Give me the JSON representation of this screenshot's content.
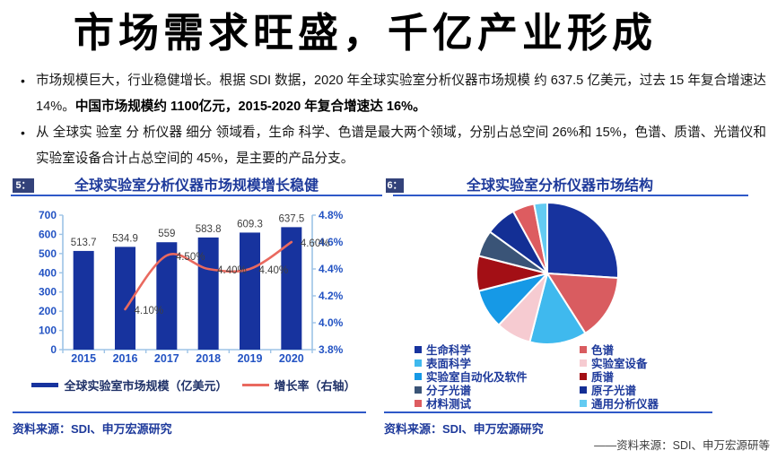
{
  "slide": {
    "title": "市场需求旺盛，千亿产业形成",
    "bullets": [
      {
        "segments": [
          {
            "text": "市场规模巨大，行业稳健增长。根据 SDI 数据，2020 年全球实验室分析仪器市场规模 约 637.5 亿美元，过去 15 年复合增速达 14%。",
            "bold": false
          },
          {
            "text": "中国市场规模约 1100亿元，2015-2020 年复合增速达 16%。",
            "bold": true
          }
        ]
      },
      {
        "segments": [
          {
            "text": "从 全球实 验室 分 析仪器 细分 领域看，生命 科学、色谱是最大两个领域，分别占总空间 26%和 15%，色谱、质谱、光谱仪和实验室设备合计占总空间的 45%，是主要的产品分支。",
            "bold": false
          }
        ]
      }
    ],
    "footnote": "——资料来源：SDI、申万宏源研等"
  },
  "left_panel": {
    "fig_num": "5：",
    "title": "全球实验室分析仪器市场规模增长稳健",
    "source": "资料来源：SDI、申万宏源研究"
  },
  "right_panel": {
    "fig_num": "6：",
    "title": "全球实验室分析仪器市场结构",
    "source": "资料来源：SDI、申万宏源研究"
  },
  "chart_data": [
    {
      "type": "bar",
      "title": "全球实验室分析仪器市场规模增长稳健",
      "categories": [
        "2015",
        "2016",
        "2017",
        "2018",
        "2019",
        "2020"
      ],
      "series": [
        {
          "name": "全球实验室市场规模（亿美元）",
          "type": "bar",
          "axis": "left",
          "color": "#17339E",
          "values": [
            513.7,
            534.9,
            559,
            583.8,
            609.3,
            637.5
          ]
        },
        {
          "name": "增长率（右轴）",
          "type": "line",
          "axis": "right",
          "color": "#E9695F",
          "values": [
            null,
            4.1,
            4.5,
            4.4,
            4.4,
            4.6
          ],
          "point_labels": [
            "",
            "4.10%",
            "4.50%",
            "4.40%",
            "4.40%",
            "4.60%"
          ]
        }
      ],
      "left_axis": {
        "min": 0,
        "max": 700,
        "step": 100
      },
      "right_axis": {
        "min": 3.8,
        "max": 4.8,
        "step": 0.2,
        "suffix": "%"
      },
      "legend_position": "bottom",
      "grid": false
    },
    {
      "type": "pie",
      "title": "全球实验室分析仪器市场结构",
      "slices": [
        {
          "label": "生命科学",
          "value": 26,
          "color": "#17339E"
        },
        {
          "label": "色谱",
          "value": 15,
          "color": "#D95C60"
        },
        {
          "label": "表面科学",
          "value": 13,
          "color": "#3FB9EE"
        },
        {
          "label": "实验室设备",
          "value": 8,
          "color": "#F6CBD1"
        },
        {
          "label": "实验室自动化及软件",
          "value": 9,
          "color": "#1699E6"
        },
        {
          "label": "质谱",
          "value": 8,
          "color": "#A30F15"
        },
        {
          "label": "分子光谱",
          "value": 6,
          "color": "#3A5477"
        },
        {
          "label": "原子光谱",
          "value": 7,
          "color": "#132F95"
        },
        {
          "label": "材料测试",
          "value": 5,
          "color": "#DD5C60"
        },
        {
          "label": "通用分析仪器",
          "value": 3,
          "color": "#63CBF2"
        }
      ],
      "legend_columns": [
        [
          0,
          2,
          4,
          6,
          8
        ],
        [
          1,
          3,
          5,
          7,
          9
        ]
      ],
      "legend_position": "bottom"
    }
  ],
  "colors": {
    "accent_blue": "#1E3A9B",
    "rule_blue": "#2E58C8",
    "axis_text_blue": "#2353C3",
    "axis_line_blue": "#9DC3E6",
    "value_label_gray": "#3f3f3f"
  }
}
